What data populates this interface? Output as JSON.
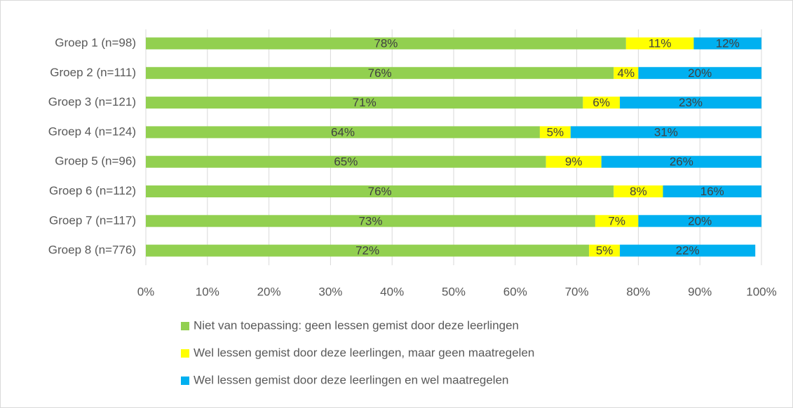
{
  "chart_data": {
    "type": "stacked-barh",
    "categories": [
      "Groep 1 (n=98)",
      "Groep 2 (n=111)",
      "Groep 3 (n=121)",
      "Groep 4 (n=124)",
      "Groep 5 (n=96)",
      "Groep 6 (n=112)",
      "Groep 7 (n=117)",
      "Groep 8 (n=776)"
    ],
    "series": [
      {
        "name": "Niet van toepassing: geen lessen gemist door deze leerlingen",
        "color": "#92d050",
        "values": [
          78,
          76,
          71,
          64,
          65,
          76,
          73,
          72
        ],
        "value_labels": [
          "78%",
          "76%",
          "71%",
          "64%",
          "65%",
          "76%",
          "73%",
          "72%"
        ]
      },
      {
        "name": "Wel lessen gemist door deze leerlingen, maar geen maatregelen",
        "color": "#ffff00",
        "values": [
          11,
          4,
          6,
          5,
          9,
          8,
          7,
          5
        ],
        "value_labels": [
          "11%",
          "4%",
          "6%",
          "5%",
          "9%",
          "8%",
          "7%",
          "5%"
        ]
      },
      {
        "name": "Wel lessen gemist door deze leerlingen en wel maatregelen",
        "color": "#00b0f0",
        "values": [
          12,
          20,
          23,
          31,
          26,
          16,
          20,
          22
        ],
        "value_labels": [
          "12%",
          "20%",
          "23%",
          "31%",
          "26%",
          "16%",
          "20%",
          "22%"
        ]
      }
    ],
    "xlim": [
      0,
      100
    ],
    "xticks": [
      {
        "value": 0,
        "label": "0%"
      },
      {
        "value": 10,
        "label": "10%"
      },
      {
        "value": 20,
        "label": "20%"
      },
      {
        "value": 30,
        "label": "30%"
      },
      {
        "value": 40,
        "label": "40%"
      },
      {
        "value": 50,
        "label": "50%"
      },
      {
        "value": 60,
        "label": "60%"
      },
      {
        "value": 70,
        "label": "70%"
      },
      {
        "value": 80,
        "label": "80%"
      },
      {
        "value": 90,
        "label": "90%"
      },
      {
        "value": 100,
        "label": "100%"
      }
    ],
    "grid": true
  }
}
